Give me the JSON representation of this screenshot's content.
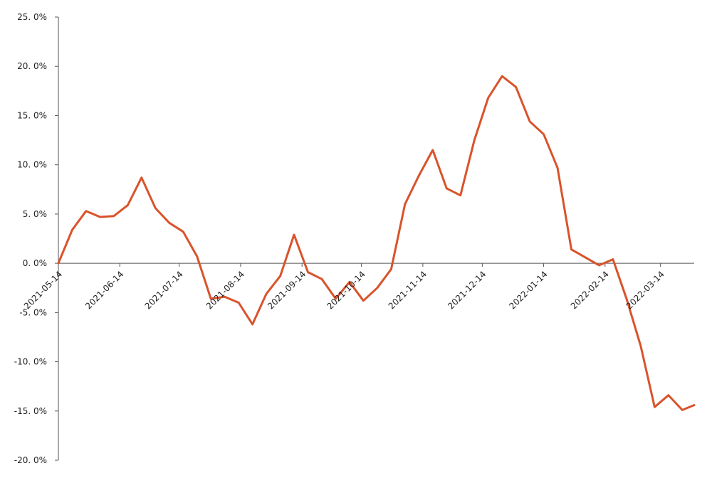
{
  "chart_data": {
    "type": "line",
    "title": "",
    "xlabel": "",
    "ylabel": "",
    "ylim": [
      -20,
      25
    ],
    "y_ticks": [
      25,
      20,
      15,
      10,
      5,
      0,
      -5,
      -10,
      -15,
      -20
    ],
    "y_tick_labels": [
      "25. 0%",
      "20. 0%",
      "15. 0%",
      "10. 0%",
      "5. 0%",
      "0. 0%",
      "-5. 0%",
      "-10. 0%",
      "-15. 0%",
      "-20. 0%"
    ],
    "x_tick_labels": [
      "2021-05-14",
      "2021-06-14",
      "2021-07-14",
      "2021-08-14",
      "2021-09-14",
      "2021-10-14",
      "2021-11-14",
      "2021-12-14",
      "2022-01-14",
      "2022-02-14",
      "2022-03-14"
    ],
    "xlim": [
      "2021-05-14",
      "2022-03-31"
    ],
    "grid": false,
    "legend": "none",
    "series": [
      {
        "color": "#D9532B",
        "x": [
          "2021-05-14",
          "2021-05-21",
          "2021-05-28",
          "2021-06-04",
          "2021-06-11",
          "2021-06-18",
          "2021-06-25",
          "2021-07-02",
          "2021-07-09",
          "2021-07-16",
          "2021-07-23",
          "2021-07-30",
          "2021-08-06",
          "2021-08-13",
          "2021-08-20",
          "2021-08-27",
          "2021-09-03",
          "2021-09-10",
          "2021-09-17",
          "2021-09-24",
          "2021-10-01",
          "2021-10-08",
          "2021-10-15",
          "2021-10-22",
          "2021-10-29",
          "2021-11-05",
          "2021-11-12",
          "2021-11-19",
          "2021-11-26",
          "2021-12-03",
          "2021-12-10",
          "2021-12-17",
          "2021-12-24",
          "2021-12-31",
          "2022-01-07",
          "2022-01-14",
          "2022-01-21",
          "2022-01-28",
          "2022-02-04",
          "2022-02-11",
          "2022-02-18",
          "2022-02-25",
          "2022-03-04",
          "2022-03-11",
          "2022-03-18",
          "2022-03-25",
          "2022-03-31"
        ],
        "values": [
          0.0,
          3.4,
          5.3,
          4.7,
          4.8,
          5.9,
          8.7,
          5.6,
          4.1,
          3.2,
          0.7,
          -3.6,
          -3.4,
          -4.0,
          -6.2,
          -3.1,
          -1.3,
          2.9,
          -0.9,
          -1.6,
          -3.6,
          -1.9,
          -3.8,
          -2.5,
          -0.6,
          6.0,
          8.9,
          11.5,
          7.6,
          6.9,
          12.5,
          16.8,
          19.0,
          17.9,
          14.4,
          13.1,
          9.7,
          1.4,
          0.6,
          -0.2,
          0.4,
          -3.7,
          -8.4,
          -14.6,
          -13.4,
          -14.9,
          -14.4
        ]
      }
    ]
  }
}
